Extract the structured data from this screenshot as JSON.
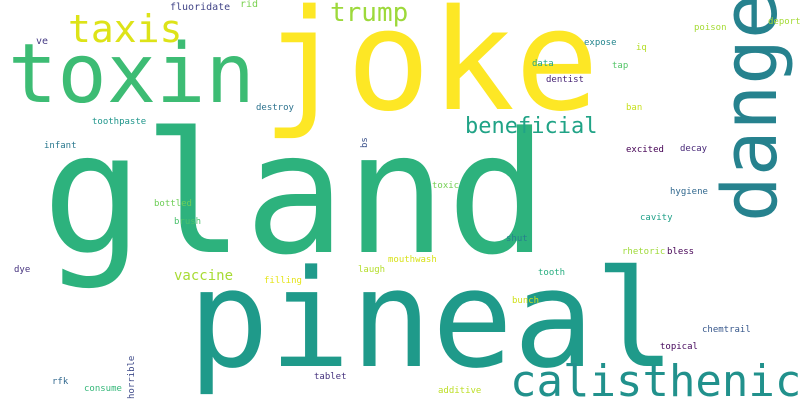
{
  "words": [
    {
      "text": "gland",
      "color": "#2db27d",
      "vertical": false
    },
    {
      "text": "pineal",
      "color": "#1f9a8a",
      "vertical": false
    },
    {
      "text": "joke",
      "color": "#fde725",
      "vertical": false
    },
    {
      "text": "toxin",
      "color": "#3dbc74",
      "vertical": false
    },
    {
      "text": "danger",
      "color": "#26828e",
      "vertical": true
    },
    {
      "text": "calisthenic",
      "color": "#21918c",
      "vertical": false
    },
    {
      "text": "taxis",
      "color": "#dde318",
      "vertical": false
    },
    {
      "text": "trump",
      "color": "#9dd93b",
      "vertical": false
    },
    {
      "text": "beneficial",
      "color": "#20a386",
      "vertical": false
    },
    {
      "text": "vaccine",
      "color": "#a8db34",
      "vertical": false
    },
    {
      "text": "fluoridate",
      "color": "#414487",
      "vertical": false
    },
    {
      "text": "rid",
      "color": "#7ad151",
      "vertical": false
    },
    {
      "text": "deport",
      "color": "#a5db36",
      "vertical": false
    },
    {
      "text": "poison",
      "color": "#a5db36",
      "vertical": false
    },
    {
      "text": "ve",
      "color": "#443983",
      "vertical": false
    },
    {
      "text": "expose",
      "color": "#24868e",
      "vertical": false
    },
    {
      "text": "iq",
      "color": "#b5de2b",
      "vertical": false
    },
    {
      "text": "tap",
      "color": "#54c568",
      "vertical": false
    },
    {
      "text": "data",
      "color": "#22a785",
      "vertical": false
    },
    {
      "text": "dentist",
      "color": "#482475",
      "vertical": false
    },
    {
      "text": "ban",
      "color": "#c8e020",
      "vertical": false
    },
    {
      "text": "destroy",
      "color": "#2c728e",
      "vertical": false
    },
    {
      "text": "toothpaste",
      "color": "#1f968b",
      "vertical": false
    },
    {
      "text": "bs",
      "color": "#3b528b",
      "vertical": true
    },
    {
      "text": "infant",
      "color": "#2a788e",
      "vertical": false
    },
    {
      "text": "excited",
      "color": "#440154",
      "vertical": false
    },
    {
      "text": "decay",
      "color": "#482878",
      "vertical": false
    },
    {
      "text": "toxic",
      "color": "#75d054",
      "vertical": false
    },
    {
      "text": "hygiene",
      "color": "#31688e",
      "vertical": false
    },
    {
      "text": "bottled",
      "color": "#6ece58",
      "vertical": false
    },
    {
      "text": "cavity",
      "color": "#1fa088",
      "vertical": false
    },
    {
      "text": "brush",
      "color": "#4ac16d",
      "vertical": false
    },
    {
      "text": "shut",
      "color": "#277f8e",
      "vertical": false
    },
    {
      "text": "rhetoric",
      "color": "#9fda3a",
      "vertical": false
    },
    {
      "text": "bless",
      "color": "#440154",
      "vertical": false
    },
    {
      "text": "mouthwash",
      "color": "#d8e219",
      "vertical": false
    },
    {
      "text": "dye",
      "color": "#46337e",
      "vertical": false
    },
    {
      "text": "laugh",
      "color": "#b5de2b",
      "vertical": false
    },
    {
      "text": "tooth",
      "color": "#28ae80",
      "vertical": false
    },
    {
      "text": "filling",
      "color": "#e5e419",
      "vertical": false
    },
    {
      "text": "bunch",
      "color": "#d0e11c",
      "vertical": false
    },
    {
      "text": "chemtrail",
      "color": "#38588c",
      "vertical": false
    },
    {
      "text": "horrible",
      "color": "#3e4a89",
      "vertical": true
    },
    {
      "text": "topical",
      "color": "#46085c",
      "vertical": false
    },
    {
      "text": "rfk",
      "color": "#31688e",
      "vertical": false
    },
    {
      "text": "consume",
      "color": "#35b779",
      "vertical": false
    },
    {
      "text": "tablet",
      "color": "#46327e",
      "vertical": false
    },
    {
      "text": "additive",
      "color": "#bddf26",
      "vertical": false
    }
  ]
}
